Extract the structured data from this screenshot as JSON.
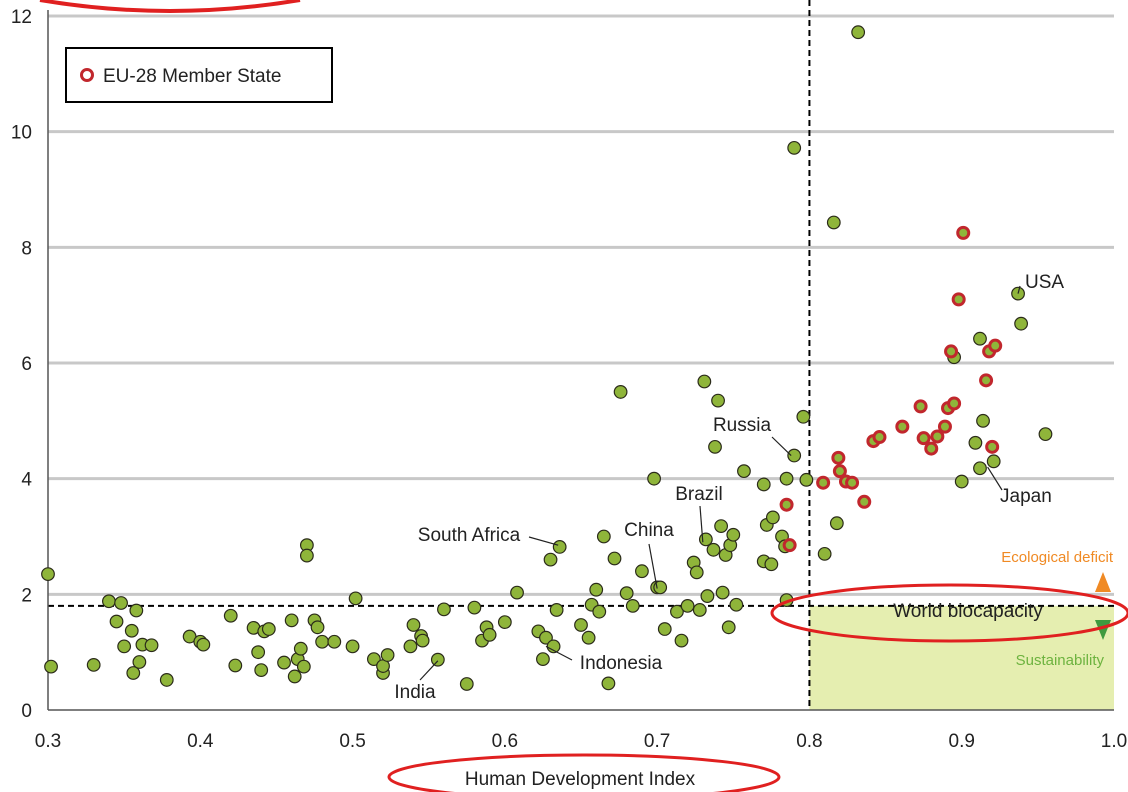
{
  "chart_data": {
    "type": "scatter",
    "title": "",
    "xlabel": "Human Development Index",
    "ylabel": "",
    "xlim": [
      0.3,
      1.0
    ],
    "ylim": [
      0,
      12
    ],
    "x_ticks": [
      "0.3",
      "0.4",
      "0.5",
      "0.6",
      "0.7",
      "0.8",
      "0.9",
      "1.0"
    ],
    "y_ticks": [
      "0",
      "2",
      "4",
      "6",
      "8",
      "10",
      "12"
    ],
    "grid": "horizontal",
    "legend": {
      "position": "top-left",
      "entries": [
        "EU-28 Member State"
      ]
    },
    "reference_lines": {
      "hdi_threshold": 0.8,
      "world_biocapacity": 1.8,
      "world_biocapacity_label": "World biocapacity"
    },
    "annotations": {
      "deficit": "Ecological deficit",
      "sustainability": "Sustainability"
    },
    "colors": {
      "point_fill": "#8fb53a",
      "eu_ring": "#c1272d",
      "grid": "#c8c8c8",
      "sustain_zone": "#e5eeb0",
      "deficit_text": "#f08a24",
      "sustain_text": "#6db33f",
      "highlight": "#e02020"
    },
    "labels": [
      {
        "text": "USA",
        "x": 0.937,
        "y": 7.2
      },
      {
        "text": "Japan",
        "x": 0.917,
        "y": 4.2
      },
      {
        "text": "Russia",
        "x": 0.788,
        "y": 4.4
      },
      {
        "text": "Brazil",
        "x": 0.73,
        "y": 2.9
      },
      {
        "text": "China",
        "x": 0.7,
        "y": 2.1
      },
      {
        "text": "South Africa",
        "x": 0.635,
        "y": 2.85
      },
      {
        "text": "Indonesia",
        "x": 0.627,
        "y": 1.1
      },
      {
        "text": "India",
        "x": 0.556,
        "y": 0.85
      }
    ],
    "series": [
      {
        "points": [
          [
            0.3,
            2.35
          ],
          [
            0.302,
            0.75
          ],
          [
            0.33,
            0.78
          ],
          [
            0.34,
            1.88
          ],
          [
            0.345,
            1.53
          ],
          [
            0.348,
            1.85
          ],
          [
            0.35,
            1.1
          ],
          [
            0.355,
            1.37
          ],
          [
            0.356,
            0.64
          ],
          [
            0.358,
            1.72
          ],
          [
            0.36,
            0.83
          ],
          [
            0.362,
            1.13
          ],
          [
            0.368,
            1.12
          ],
          [
            0.378,
            0.52
          ],
          [
            0.393,
            1.27
          ],
          [
            0.4,
            1.18
          ],
          [
            0.402,
            1.13
          ],
          [
            0.42,
            1.63
          ],
          [
            0.423,
            0.77
          ],
          [
            0.435,
            1.42
          ],
          [
            0.438,
            1.0
          ],
          [
            0.44,
            0.69
          ],
          [
            0.442,
            1.36
          ],
          [
            0.445,
            1.4
          ],
          [
            0.455,
            0.82
          ],
          [
            0.46,
            1.55
          ],
          [
            0.462,
            0.58
          ],
          [
            0.464,
            0.88
          ],
          [
            0.466,
            1.06
          ],
          [
            0.468,
            0.75
          ],
          [
            0.47,
            2.85
          ],
          [
            0.47,
            2.67
          ],
          [
            0.475,
            1.55
          ],
          [
            0.477,
            1.43
          ],
          [
            0.48,
            1.18
          ],
          [
            0.488,
            1.18
          ],
          [
            0.5,
            1.1
          ],
          [
            0.502,
            1.93
          ],
          [
            0.514,
            0.88
          ],
          [
            0.52,
            0.64
          ],
          [
            0.52,
            0.76
          ],
          [
            0.523,
            0.95
          ],
          [
            0.538,
            1.1
          ],
          [
            0.54,
            1.47
          ],
          [
            0.545,
            1.28
          ],
          [
            0.546,
            1.2
          ],
          [
            0.556,
            0.87
          ],
          [
            0.56,
            1.74
          ],
          [
            0.575,
            0.45
          ],
          [
            0.58,
            1.77
          ],
          [
            0.585,
            1.2
          ],
          [
            0.588,
            1.43
          ],
          [
            0.59,
            1.3
          ],
          [
            0.6,
            1.52
          ],
          [
            0.608,
            2.03
          ],
          [
            0.622,
            1.36
          ],
          [
            0.625,
            0.88
          ],
          [
            0.627,
            1.25
          ],
          [
            0.63,
            2.6
          ],
          [
            0.632,
            1.1
          ],
          [
            0.634,
            1.73
          ],
          [
            0.636,
            2.82
          ],
          [
            0.65,
            1.47
          ],
          [
            0.655,
            1.25
          ],
          [
            0.657,
            1.82
          ],
          [
            0.66,
            2.08
          ],
          [
            0.662,
            1.7
          ],
          [
            0.665,
            3.0
          ],
          [
            0.668,
            0.46
          ],
          [
            0.672,
            2.62
          ],
          [
            0.676,
            5.5
          ],
          [
            0.68,
            2.02
          ],
          [
            0.684,
            1.8
          ],
          [
            0.69,
            2.4
          ],
          [
            0.698,
            4.0
          ],
          [
            0.7,
            2.12
          ],
          [
            0.702,
            2.12
          ],
          [
            0.705,
            1.4
          ],
          [
            0.713,
            1.7
          ],
          [
            0.716,
            1.2
          ],
          [
            0.72,
            1.8
          ],
          [
            0.724,
            2.55
          ],
          [
            0.726,
            2.38
          ],
          [
            0.728,
            1.73
          ],
          [
            0.731,
            5.68
          ],
          [
            0.732,
            2.95
          ],
          [
            0.733,
            1.97
          ],
          [
            0.737,
            2.77
          ],
          [
            0.738,
            4.55
          ],
          [
            0.74,
            5.35
          ],
          [
            0.742,
            3.18
          ],
          [
            0.743,
            2.03
          ],
          [
            0.745,
            2.68
          ],
          [
            0.747,
            1.43
          ],
          [
            0.748,
            2.85
          ],
          [
            0.75,
            3.03
          ],
          [
            0.752,
            1.82
          ],
          [
            0.757,
            4.13
          ],
          [
            0.77,
            3.9
          ],
          [
            0.77,
            2.57
          ],
          [
            0.772,
            3.2
          ],
          [
            0.775,
            2.52
          ],
          [
            0.776,
            3.33
          ],
          [
            0.782,
            3.0
          ],
          [
            0.784,
            2.83
          ],
          [
            0.785,
            1.9
          ],
          [
            0.785,
            4.0
          ],
          [
            0.79,
            4.4
          ],
          [
            0.796,
            5.07
          ],
          [
            0.798,
            3.98
          ],
          [
            0.81,
            2.7
          ],
          [
            0.818,
            3.23
          ],
          [
            0.79,
            9.72
          ],
          [
            0.816,
            8.43
          ],
          [
            0.832,
            11.72
          ],
          [
            0.895,
            6.1
          ],
          [
            0.912,
            6.42
          ],
          [
            0.914,
            5.0
          ],
          [
            0.909,
            4.62
          ],
          [
            0.912,
            4.18
          ],
          [
            0.9,
            3.95
          ],
          [
            0.921,
            4.3
          ],
          [
            0.937,
            7.2
          ],
          [
            0.939,
            6.68
          ],
          [
            0.955,
            4.77
          ]
        ]
      },
      {
        "name": "EU-28 Member State",
        "points": [
          [
            0.785,
            3.55
          ],
          [
            0.787,
            2.85
          ],
          [
            0.809,
            3.93
          ],
          [
            0.819,
            4.36
          ],
          [
            0.82,
            4.13
          ],
          [
            0.824,
            3.95
          ],
          [
            0.828,
            3.93
          ],
          [
            0.836,
            3.6
          ],
          [
            0.842,
            4.65
          ],
          [
            0.846,
            4.72
          ],
          [
            0.861,
            4.9
          ],
          [
            0.873,
            5.25
          ],
          [
            0.875,
            4.7
          ],
          [
            0.88,
            4.52
          ],
          [
            0.884,
            4.73
          ],
          [
            0.889,
            4.9
          ],
          [
            0.891,
            5.22
          ],
          [
            0.893,
            6.2
          ],
          [
            0.895,
            5.3
          ],
          [
            0.898,
            7.1
          ],
          [
            0.901,
            8.25
          ],
          [
            0.916,
            5.7
          ],
          [
            0.918,
            6.2
          ],
          [
            0.92,
            4.55
          ],
          [
            0.922,
            6.3
          ]
        ]
      }
    ]
  }
}
